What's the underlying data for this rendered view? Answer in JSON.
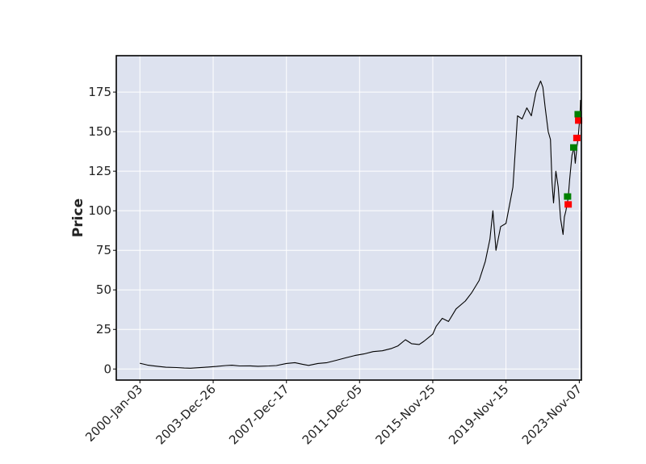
{
  "chart_data": {
    "type": "line",
    "title": "",
    "xlabel": "",
    "ylabel": "Price",
    "ylim": [
      -7,
      198
    ],
    "xlim": [
      "1998-09-22",
      "2023-12-19"
    ],
    "grid": true,
    "legend": "none",
    "colors": {
      "plot_background": "#dde2ef",
      "grid": "#ffffff",
      "line": "#000000",
      "buy_marker": "#008000",
      "sell_marker": "#ff0000"
    },
    "y_ticks": [
      0,
      25,
      50,
      75,
      100,
      125,
      150,
      175
    ],
    "y_tick_labels": [
      "0",
      "25",
      "50",
      "75",
      "100",
      "125",
      "150",
      "175"
    ],
    "x_ticks": [
      "2000-01-03",
      "2003-12-26",
      "2007-12-17",
      "2011-12-05",
      "2015-11-25",
      "2019-11-15",
      "2023-11-07"
    ],
    "x_tick_labels": [
      "2000-Jan-03",
      "2003-Dec-26",
      "2007-Dec-17",
      "2011-Dec-05",
      "2015-Nov-25",
      "2019-Nov-15",
      "2023-Nov-07"
    ],
    "series": [
      {
        "type": "line",
        "points": [
          [
            "2000-01-03",
            3.6
          ],
          [
            "2000-03-01",
            3.2
          ],
          [
            "2000-06-01",
            2.5
          ],
          [
            "2000-09-01",
            2.1
          ],
          [
            "2001-01-01",
            1.6
          ],
          [
            "2001-06-01",
            1.1
          ],
          [
            "2002-01-01",
            0.9
          ],
          [
            "2002-06-01",
            0.6
          ],
          [
            "2002-10-01",
            0.5
          ],
          [
            "2003-03-01",
            0.8
          ],
          [
            "2003-09-01",
            1.2
          ],
          [
            "2004-03-01",
            1.6
          ],
          [
            "2004-09-01",
            2.2
          ],
          [
            "2005-01-01",
            2.4
          ],
          [
            "2005-06-01",
            1.9
          ],
          [
            "2006-01-01",
            2.0
          ],
          [
            "2006-06-01",
            1.7
          ],
          [
            "2007-01-01",
            1.9
          ],
          [
            "2007-06-01",
            2.2
          ],
          [
            "2007-12-17",
            3.5
          ],
          [
            "2008-06-01",
            4.0
          ],
          [
            "2008-11-01",
            3.0
          ],
          [
            "2009-03-01",
            2.3
          ],
          [
            "2009-09-01",
            3.5
          ],
          [
            "2010-03-01",
            4.0
          ],
          [
            "2010-09-01",
            5.5
          ],
          [
            "2011-03-01",
            7.0
          ],
          [
            "2011-09-01",
            8.5
          ],
          [
            "2012-03-01",
            9.5
          ],
          [
            "2012-09-01",
            11.0
          ],
          [
            "2013-03-01",
            11.5
          ],
          [
            "2013-09-01",
            13.0
          ],
          [
            "2014-01-01",
            14.5
          ],
          [
            "2014-06-01",
            18.5
          ],
          [
            "2014-10-01",
            16.0
          ],
          [
            "2015-03-01",
            15.5
          ],
          [
            "2015-06-01",
            17.5
          ],
          [
            "2015-11-25",
            22.0
          ],
          [
            "2016-02-01",
            27.0
          ],
          [
            "2016-06-01",
            32.0
          ],
          [
            "2016-10-01",
            30.0
          ],
          [
            "2017-03-01",
            38.0
          ],
          [
            "2017-09-01",
            43.0
          ],
          [
            "2018-01-01",
            48.0
          ],
          [
            "2018-06-01",
            56.0
          ],
          [
            "2018-10-01",
            68.0
          ],
          [
            "2019-01-01",
            82.0
          ],
          [
            "2019-03-01",
            100.0
          ],
          [
            "2019-05-01",
            75.0
          ],
          [
            "2019-08-01",
            90.0
          ],
          [
            "2019-11-15",
            92.0
          ],
          [
            "2020-02-01",
            105.0
          ],
          [
            "2020-04-01",
            115.0
          ],
          [
            "2020-07-01",
            160.0
          ],
          [
            "2020-10-01",
            158.0
          ],
          [
            "2021-01-01",
            165.0
          ],
          [
            "2021-04-01",
            160.0
          ],
          [
            "2021-07-01",
            175.0
          ],
          [
            "2021-10-01",
            182.0
          ],
          [
            "2021-11-15",
            178.0
          ],
          [
            "2022-01-01",
            165.0
          ],
          [
            "2022-03-01",
            150.0
          ],
          [
            "2022-04-15",
            145.0
          ],
          [
            "2022-05-15",
            118.0
          ],
          [
            "2022-06-15",
            105.0
          ],
          [
            "2022-08-01",
            125.0
          ],
          [
            "2022-09-15",
            115.0
          ],
          [
            "2022-11-01",
            95.0
          ],
          [
            "2022-12-20",
            85.0
          ],
          [
            "2023-01-15",
            96.0
          ],
          [
            "2023-02-15",
            100.0
          ],
          [
            "2023-04-01",
            108.0
          ],
          [
            "2023-05-01",
            120.0
          ],
          [
            "2023-06-15",
            135.0
          ],
          [
            "2023-07-25",
            140.0
          ],
          [
            "2023-08-20",
            130.0
          ],
          [
            "2023-09-20",
            140.0
          ],
          [
            "2023-10-20",
            148.0
          ],
          [
            "2023-11-20",
            160.0
          ],
          [
            "2023-12-01",
            170.0
          ]
        ]
      },
      {
        "type": "buy-markers",
        "marker": "square",
        "points": [
          [
            "2023-03-20",
            109
          ],
          [
            "2023-07-20",
            140
          ],
          [
            "2023-10-15",
            161
          ]
        ]
      },
      {
        "type": "sell-markers",
        "marker": "square",
        "points": [
          [
            "2023-04-01",
            104
          ],
          [
            "2023-09-20",
            146
          ],
          [
            "2023-10-25",
            157
          ]
        ]
      }
    ]
  }
}
